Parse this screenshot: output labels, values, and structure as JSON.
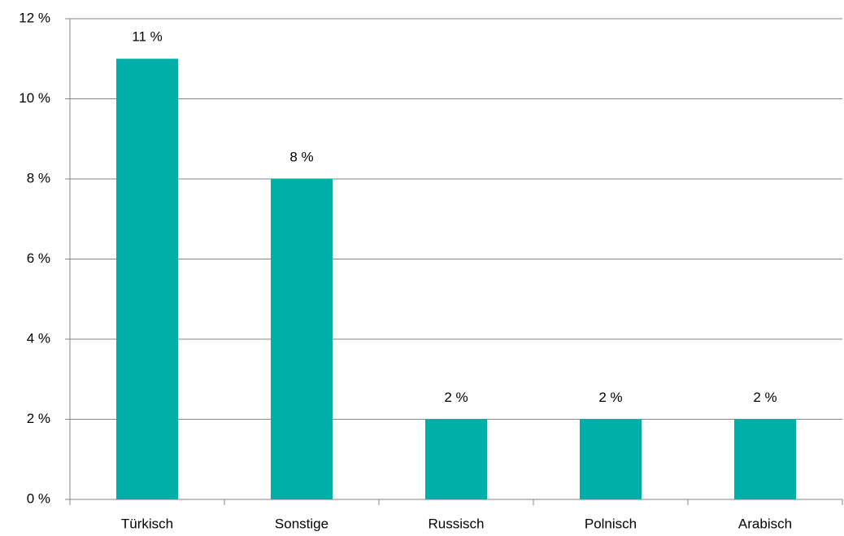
{
  "chart_data": {
    "type": "bar",
    "categories": [
      "Türkisch",
      "Sonstige",
      "Russisch",
      "Polnisch",
      "Arabisch"
    ],
    "values": [
      11,
      8,
      2,
      2,
      2
    ],
    "value_labels": [
      "11 %",
      "8 %",
      "2 %",
      "2 %",
      "2 %"
    ],
    "color": "#00b0a8",
    "ylim": [
      0,
      12
    ],
    "yticks": [
      {
        "value": 0,
        "label": "0 %"
      },
      {
        "value": 2,
        "label": "2 %"
      },
      {
        "value": 4,
        "label": "4 %"
      },
      {
        "value": 6,
        "label": "6 %"
      },
      {
        "value": 8,
        "label": "8 %"
      },
      {
        "value": 10,
        "label": "10 %"
      },
      {
        "value": 12,
        "label": "12 %"
      }
    ],
    "grid": true
  }
}
